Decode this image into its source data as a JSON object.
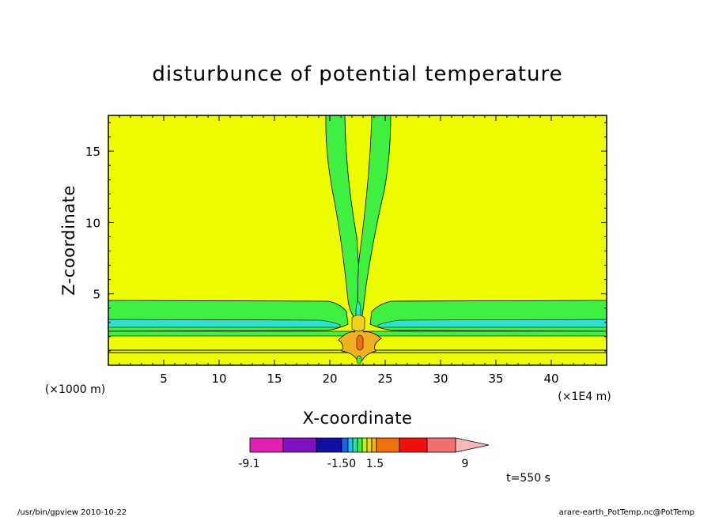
{
  "chart_data": {
    "type": "heatmap",
    "title": "disturbunce of potential temperature",
    "xlabel": "X-coordinate",
    "ylabel": "Z-coordinate",
    "x_unit_left": "(×1000 m)",
    "x_unit_right": "(×1E4 m)",
    "xlim": [
      0,
      45
    ],
    "ylim": [
      0,
      17.5
    ],
    "x_ticks": [
      5,
      10,
      15,
      20,
      25,
      30,
      35,
      40
    ],
    "y_ticks": [
      5,
      10,
      15
    ],
    "colorbar": {
      "labels": [
        "-9.1",
        "-1.50",
        "1.5",
        "9"
      ],
      "colors": [
        "#e020b0",
        "#8010c0",
        "#1010a0",
        "#2060e0",
        "#20c0f0",
        "#30e0a0",
        "#40f040",
        "#c0f020",
        "#f0d020",
        "#f0b020",
        "#f07010",
        "#f01010",
        "#f07070",
        "#f8b8b8"
      ]
    },
    "time_label": "t=550 s",
    "background_color": "#eefc00"
  },
  "footer": {
    "left": "/usr/bin/gpview   2010-10-22",
    "right": "arare-earth_PotTemp.nc@PotTemp"
  }
}
